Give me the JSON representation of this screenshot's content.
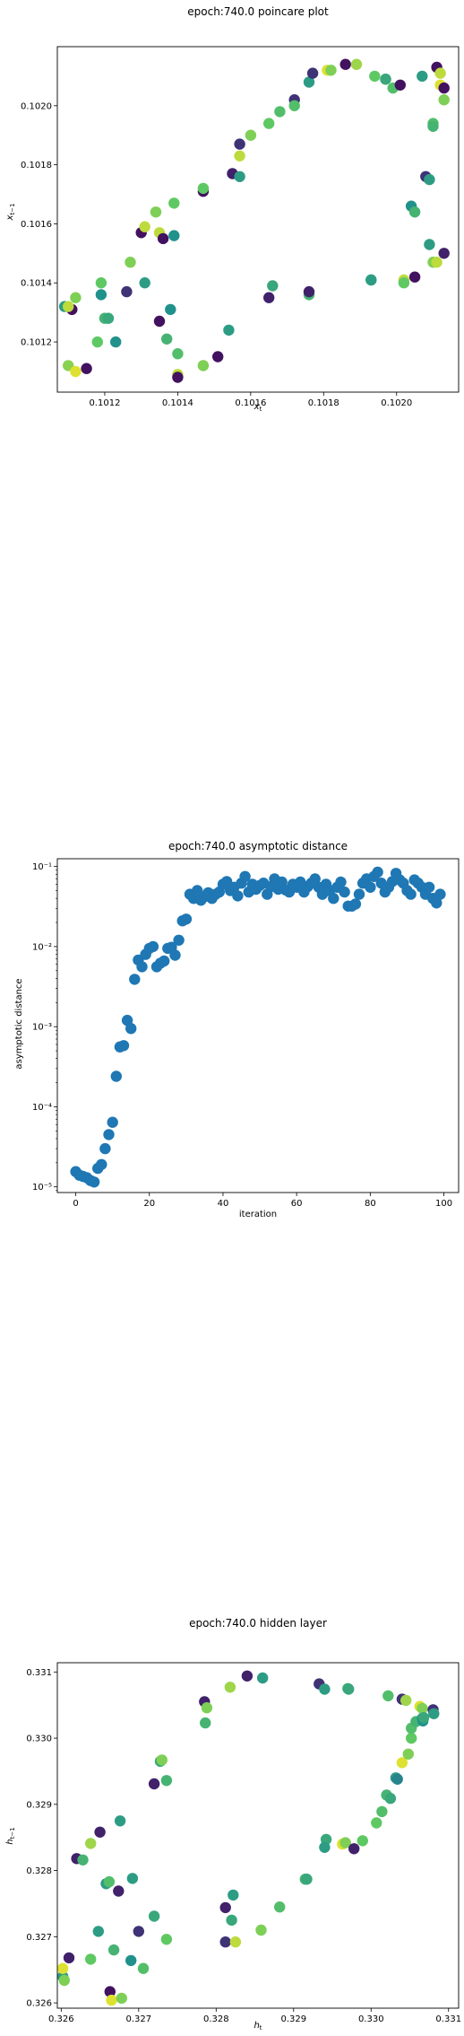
{
  "chart_data": [
    {
      "type": "scatter",
      "title": "epoch:740.0 poincare plot",
      "xlabel": "x_t",
      "ylabel": "x_{t-1}",
      "xlim": [
        0.10107,
        0.10217
      ],
      "ylim": [
        0.10103,
        0.1022
      ],
      "xticks": [
        {
          "v": 0.1012,
          "label": "0.1012"
        },
        {
          "v": 0.1014,
          "label": "0.1014"
        },
        {
          "v": 0.1016,
          "label": "0.1016"
        },
        {
          "v": 0.1018,
          "label": "0.1018"
        },
        {
          "v": 0.102,
          "label": "0.1020"
        }
      ],
      "yticks": [
        {
          "v": 0.1012,
          "label": "0.1012"
        },
        {
          "v": 0.1014,
          "label": "0.1014"
        },
        {
          "v": 0.1016,
          "label": "0.1016"
        },
        {
          "v": 0.1018,
          "label": "0.1018"
        },
        {
          "v": 0.102,
          "label": "0.1020"
        }
      ],
      "colormap": "viridis",
      "points": [
        [
          0.1011,
          0.10112,
          0.82
        ],
        [
          0.10112,
          0.1011,
          0.95
        ],
        [
          0.10115,
          0.10111,
          0.05
        ],
        [
          0.10118,
          0.1012,
          0.75
        ],
        [
          0.10109,
          0.10132,
          0.55
        ],
        [
          0.10111,
          0.10131,
          0.05
        ],
        [
          0.1011,
          0.10132,
          0.9
        ],
        [
          0.10112,
          0.10135,
          0.8
        ],
        [
          0.1012,
          0.10128,
          0.65
        ],
        [
          0.10121,
          0.10128,
          0.6
        ],
        [
          0.10123,
          0.1012,
          0.5
        ],
        [
          0.10119,
          0.10136,
          0.5
        ],
        [
          0.10119,
          0.1014,
          0.75
        ],
        [
          0.10126,
          0.10137,
          0.15
        ],
        [
          0.10127,
          0.10147,
          0.8
        ],
        [
          0.10131,
          0.1014,
          0.55
        ],
        [
          0.1013,
          0.10157,
          0.05
        ],
        [
          0.10131,
          0.10159,
          0.9
        ],
        [
          0.10134,
          0.10164,
          0.8
        ],
        [
          0.10135,
          0.10157,
          0.9
        ],
        [
          0.10136,
          0.10155,
          0.05
        ],
        [
          0.10139,
          0.10156,
          0.5
        ],
        [
          0.10139,
          0.10167,
          0.75
        ],
        [
          0.10135,
          0.10127,
          0.05
        ],
        [
          0.10137,
          0.10121,
          0.65
        ],
        [
          0.10138,
          0.10131,
          0.5
        ],
        [
          0.1014,
          0.10116,
          0.7
        ],
        [
          0.1014,
          0.10109,
          0.9
        ],
        [
          0.1014,
          0.10108,
          0.05
        ],
        [
          0.10147,
          0.10112,
          0.95
        ],
        [
          0.10147,
          0.10112,
          0.8
        ],
        [
          0.10151,
          0.10115,
          0.05
        ],
        [
          0.10154,
          0.10124,
          0.55
        ],
        [
          0.10147,
          0.10171,
          0.05
        ],
        [
          0.10147,
          0.10172,
          0.75
        ],
        [
          0.10155,
          0.10177,
          0.1
        ],
        [
          0.10157,
          0.10176,
          0.55
        ],
        [
          0.10157,
          0.10183,
          0.9
        ],
        [
          0.10157,
          0.10187,
          0.15
        ],
        [
          0.1016,
          0.1019,
          0.8
        ],
        [
          0.10165,
          0.10135,
          0.1
        ],
        [
          0.10166,
          0.10139,
          0.6
        ],
        [
          0.10165,
          0.10194,
          0.75
        ],
        [
          0.10168,
          0.10198,
          0.7
        ],
        [
          0.10172,
          0.10202,
          0.15
        ],
        [
          0.10172,
          0.102,
          0.7
        ],
        [
          0.10176,
          0.10208,
          0.55
        ],
        [
          0.10176,
          0.10136,
          0.65
        ],
        [
          0.10176,
          0.10137,
          0.1
        ],
        [
          0.10177,
          0.10211,
          0.15
        ],
        [
          0.10181,
          0.10212,
          0.95
        ],
        [
          0.10182,
          0.10212,
          0.8
        ],
        [
          0.10186,
          0.10214,
          0.05
        ],
        [
          0.10189,
          0.10214,
          0.85
        ],
        [
          0.10193,
          0.10141,
          0.7
        ],
        [
          0.10193,
          0.10141,
          0.55
        ],
        [
          0.10194,
          0.1021,
          0.75
        ],
        [
          0.10197,
          0.10209,
          0.65
        ],
        [
          0.10197,
          0.10209,
          0.6
        ],
        [
          0.10199,
          0.10206,
          0.7
        ],
        [
          0.10201,
          0.10207,
          0.05
        ],
        [
          0.10202,
          0.10141,
          0.9
        ],
        [
          0.10202,
          0.1014,
          0.75
        ],
        [
          0.10204,
          0.10166,
          0.5
        ],
        [
          0.10205,
          0.10142,
          0.05
        ],
        [
          0.10205,
          0.10164,
          0.65
        ],
        [
          0.10207,
          0.1021,
          0.55
        ],
        [
          0.10208,
          0.10176,
          0.15
        ],
        [
          0.10209,
          0.10175,
          0.55
        ],
        [
          0.10209,
          0.10153,
          0.55
        ],
        [
          0.1021,
          0.10147,
          0.8
        ],
        [
          0.1021,
          0.10194,
          0.7
        ],
        [
          0.1021,
          0.10193,
          0.65
        ],
        [
          0.10211,
          0.10213,
          0.05
        ],
        [
          0.10212,
          0.10211,
          0.9
        ],
        [
          0.10212,
          0.10207,
          0.95
        ],
        [
          0.10213,
          0.10202,
          0.8
        ],
        [
          0.10213,
          0.10206,
          0.05
        ],
        [
          0.10213,
          0.1015,
          0.1
        ],
        [
          0.10211,
          0.10147,
          0.9
        ]
      ]
    },
    {
      "type": "scatter",
      "title": "epoch:740.0 asymptotic distance",
      "xlabel": "iteration",
      "ylabel": "asymptotic distance",
      "yscale": "log",
      "xlim": [
        -5,
        104
      ],
      "ylim": [
        8.5e-06,
        0.125
      ],
      "color": "#1f77b4",
      "xticks": [
        {
          "v": 0,
          "label": "0"
        },
        {
          "v": 20,
          "label": "20"
        },
        {
          "v": 40,
          "label": "40"
        },
        {
          "v": 60,
          "label": "60"
        },
        {
          "v": 80,
          "label": "80"
        },
        {
          "v": 100,
          "label": "100"
        }
      ],
      "yticks": [
        {
          "v": 1e-05,
          "label": "10⁻⁵"
        },
        {
          "v": 0.0001,
          "label": "10⁻⁴"
        },
        {
          "v": 0.001,
          "label": "10⁻³"
        },
        {
          "v": 0.01,
          "label": "10⁻²"
        },
        {
          "v": 0.1,
          "label": "10⁻¹"
        }
      ],
      "x": [
        0,
        1,
        2,
        3,
        4,
        5,
        6,
        7,
        8,
        9,
        10,
        11,
        12,
        13,
        14,
        15,
        16,
        17,
        18,
        19,
        20,
        21,
        22,
        23,
        24,
        25,
        26,
        27,
        28,
        29,
        30,
        31,
        32,
        33,
        34,
        35,
        36,
        37,
        38,
        39,
        40,
        41,
        42,
        43,
        44,
        45,
        46,
        47,
        48,
        49,
        50,
        51,
        52,
        53,
        54,
        55,
        56,
        57,
        58,
        59,
        60,
        61,
        62,
        63,
        64,
        65,
        66,
        67,
        68,
        69,
        70,
        71,
        72,
        73,
        74,
        75,
        76,
        77,
        78,
        79,
        80,
        81,
        82,
        83,
        84,
        85,
        86,
        87,
        88,
        89,
        90,
        91,
        92,
        93,
        94,
        95,
        96,
        97,
        98,
        99
      ],
      "y": [
        1.55e-05,
        1.4e-05,
        1.35e-05,
        1.3e-05,
        1.2e-05,
        1.15e-05,
        1.7e-05,
        1.9e-05,
        3e-05,
        4.5e-05,
        6.4e-05,
        0.00024,
        0.00056,
        0.00058,
        0.0012,
        0.00095,
        0.0039,
        0.0068,
        0.0056,
        0.008,
        0.0095,
        0.01,
        0.0056,
        0.0062,
        0.0066,
        0.0095,
        0.0098,
        0.0078,
        0.012,
        0.021,
        0.022,
        0.045,
        0.04,
        0.05,
        0.038,
        0.042,
        0.047,
        0.04,
        0.045,
        0.048,
        0.06,
        0.065,
        0.05,
        0.055,
        0.043,
        0.062,
        0.075,
        0.048,
        0.06,
        0.052,
        0.058,
        0.062,
        0.045,
        0.056,
        0.07,
        0.052,
        0.064,
        0.051,
        0.048,
        0.06,
        0.055,
        0.064,
        0.048,
        0.056,
        0.062,
        0.07,
        0.055,
        0.045,
        0.06,
        0.05,
        0.04,
        0.055,
        0.064,
        0.048,
        0.032,
        0.032,
        0.034,
        0.045,
        0.062,
        0.07,
        0.055,
        0.075,
        0.085,
        0.062,
        0.048,
        0.055,
        0.065,
        0.082,
        0.068,
        0.062,
        0.05,
        0.045,
        0.068,
        0.062,
        0.055,
        0.045,
        0.055,
        0.04,
        0.035,
        0.045
      ]
    },
    {
      "type": "scatter",
      "title": "epoch:740.0 hidden layer",
      "xlabel": "h_t",
      "ylabel": "h_{t-1}",
      "xlim": [
        0.32595,
        0.33113
      ],
      "ylim": [
        0.32592,
        0.33114
      ],
      "colormap": "viridis",
      "xticks": [
        {
          "v": 0.326,
          "label": "0.326"
        },
        {
          "v": 0.327,
          "label": "0.327"
        },
        {
          "v": 0.328,
          "label": "0.328"
        },
        {
          "v": 0.329,
          "label": "0.329"
        },
        {
          "v": 0.33,
          "label": "0.330"
        },
        {
          "v": 0.331,
          "label": "0.331"
        }
      ],
      "yticks": [
        {
          "v": 0.326,
          "label": "0.326"
        },
        {
          "v": 0.327,
          "label": "0.327"
        },
        {
          "v": 0.328,
          "label": "0.328"
        },
        {
          "v": 0.329,
          "label": "0.329"
        },
        {
          "v": 0.33,
          "label": "0.330"
        },
        {
          "v": 0.331,
          "label": "0.331"
        }
      ],
      "points": [
        [
          0.32602,
          0.3264,
          0.55
        ],
        [
          0.32602,
          0.32652,
          0.95
        ],
        [
          0.32604,
          0.32634,
          0.8
        ],
        [
          0.3261,
          0.32668,
          0.1
        ],
        [
          0.3262,
          0.32818,
          0.1
        ],
        [
          0.32628,
          0.32816,
          0.65
        ],
        [
          0.32638,
          0.32666,
          0.75
        ],
        [
          0.32638,
          0.32841,
          0.85
        ],
        [
          0.32648,
          0.32708,
          0.55
        ],
        [
          0.3265,
          0.32858,
          0.1
        ],
        [
          0.32658,
          0.3278,
          0.55
        ],
        [
          0.32662,
          0.32783,
          0.7
        ],
        [
          0.32663,
          0.32617,
          0.05
        ],
        [
          0.32665,
          0.32604,
          0.95
        ],
        [
          0.32668,
          0.3268,
          0.65
        ],
        [
          0.32674,
          0.32769,
          0.1
        ],
        [
          0.32676,
          0.32875,
          0.55
        ],
        [
          0.32678,
          0.32607,
          0.8
        ],
        [
          0.3269,
          0.32664,
          0.5
        ],
        [
          0.32692,
          0.32788,
          0.55
        ],
        [
          0.327,
          0.32708,
          0.15
        ],
        [
          0.32706,
          0.32652,
          0.7
        ],
        [
          0.3272,
          0.32731,
          0.6
        ],
        [
          0.3272,
          0.32931,
          0.1
        ],
        [
          0.32728,
          0.32965,
          0.6
        ],
        [
          0.3273,
          0.32967,
          0.8
        ],
        [
          0.32736,
          0.32696,
          0.75
        ],
        [
          0.32736,
          0.32936,
          0.65
        ],
        [
          0.32785,
          0.33055,
          0.1
        ],
        [
          0.32788,
          0.33046,
          0.8
        ],
        [
          0.32786,
          0.33023,
          0.65
        ],
        [
          0.32812,
          0.32744,
          0.1
        ],
        [
          0.32812,
          0.32692,
          0.15
        ],
        [
          0.32818,
          0.33077,
          0.85
        ],
        [
          0.3282,
          0.32725,
          0.6
        ],
        [
          0.32822,
          0.32763,
          0.55
        ],
        [
          0.32825,
          0.32692,
          0.9
        ],
        [
          0.3284,
          0.33094,
          0.1
        ],
        [
          0.32858,
          0.3271,
          0.8
        ],
        [
          0.3286,
          0.33091,
          0.55
        ],
        [
          0.32882,
          0.32745,
          0.7
        ],
        [
          0.32915,
          0.32787,
          0.65
        ],
        [
          0.32917,
          0.32787,
          0.6
        ],
        [
          0.32933,
          0.33082,
          0.15
        ],
        [
          0.3294,
          0.33074,
          0.55
        ],
        [
          0.32942,
          0.32847,
          0.6
        ],
        [
          0.3294,
          0.32835,
          0.55
        ],
        [
          0.32963,
          0.3284,
          0.95
        ],
        [
          0.32967,
          0.32842,
          0.8
        ],
        [
          0.3297,
          0.33075,
          0.65
        ],
        [
          0.32971,
          0.33074,
          0.6
        ],
        [
          0.32978,
          0.32833,
          0.1
        ],
        [
          0.32989,
          0.32845,
          0.75
        ],
        [
          0.33007,
          0.32872,
          0.75
        ],
        [
          0.33014,
          0.32889,
          0.7
        ],
        [
          0.3302,
          0.32914,
          0.65
        ],
        [
          0.33022,
          0.33064,
          0.7
        ],
        [
          0.33025,
          0.32909,
          0.6
        ],
        [
          0.33032,
          0.3294,
          0.55
        ],
        [
          0.33034,
          0.32938,
          0.45
        ],
        [
          0.3304,
          0.32963,
          0.95
        ],
        [
          0.3304,
          0.33059,
          0.15
        ],
        [
          0.33045,
          0.33057,
          0.85
        ],
        [
          0.33048,
          0.32976,
          0.8
        ],
        [
          0.33052,
          0.33,
          0.75
        ],
        [
          0.33052,
          0.33015,
          0.7
        ],
        [
          0.33058,
          0.33025,
          0.65
        ],
        [
          0.33063,
          0.33048,
          0.95
        ],
        [
          0.33066,
          0.33045,
          0.8
        ],
        [
          0.33066,
          0.3303,
          0.55
        ],
        [
          0.33067,
          0.33026,
          0.5
        ],
        [
          0.33068,
          0.33031,
          0.6
        ],
        [
          0.3308,
          0.33043,
          0.15
        ],
        [
          0.33081,
          0.33037,
          0.55
        ]
      ]
    }
  ]
}
